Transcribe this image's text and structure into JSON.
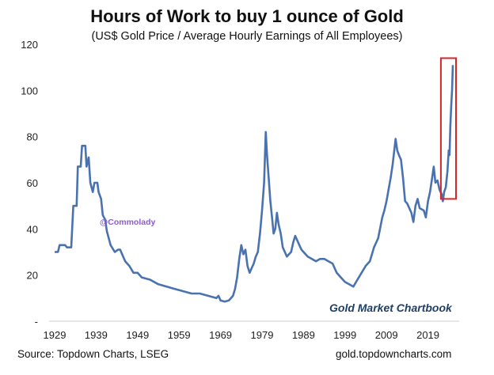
{
  "chart_data": {
    "type": "line",
    "title": "Hours of Work to buy 1 ounce of Gold",
    "subtitle": "(US$ Gold Price / Average Hourly Earnings of All Employees)",
    "xlabel": "",
    "ylabel": "",
    "xlim": [
      1929,
      2025
    ],
    "ylim": [
      0,
      120
    ],
    "x_ticks": [
      "1929",
      "1939",
      "1949",
      "1959",
      "1969",
      "1979",
      "1989",
      "1999",
      "2009",
      "2019"
    ],
    "y_ticks": [
      "-",
      "20",
      "40",
      "60",
      "80",
      "100",
      "120"
    ],
    "grid": false,
    "annotations": [
      "@Commolady",
      "Gold Market Chartbook"
    ],
    "highlight": {
      "x_range": [
        2022.5,
        2025
      ],
      "y_range": [
        53,
        114
      ]
    },
    "line_color": "#4a72b0",
    "highlight_color": "#d62728",
    "annotation_colors": {
      "@Commolady": "#8e5ad6",
      "Gold Market Chartbook": "#1f3f66"
    },
    "series": [
      {
        "name": "",
        "points": [
          [
            1929,
            30
          ],
          [
            1929.8,
            30
          ],
          [
            1930.2,
            33
          ],
          [
            1931.5,
            33
          ],
          [
            1932,
            32
          ],
          [
            1933,
            32
          ],
          [
            1933.5,
            50
          ],
          [
            1934.3,
            50
          ],
          [
            1934.6,
            67
          ],
          [
            1935.3,
            67
          ],
          [
            1935.6,
            76
          ],
          [
            1936.4,
            76
          ],
          [
            1936.7,
            67
          ],
          [
            1937.2,
            71
          ],
          [
            1937.6,
            60
          ],
          [
            1938.2,
            56
          ],
          [
            1938.6,
            60
          ],
          [
            1939.3,
            60
          ],
          [
            1939.6,
            56
          ],
          [
            1940.2,
            53
          ],
          [
            1940.6,
            46
          ],
          [
            1941.2,
            44
          ],
          [
            1941.6,
            39
          ],
          [
            1942.5,
            33
          ],
          [
            1943.5,
            30
          ],
          [
            1944.3,
            31
          ],
          [
            1944.8,
            31
          ],
          [
            1945.5,
            28
          ],
          [
            1946,
            26
          ],
          [
            1947,
            24
          ],
          [
            1948,
            21
          ],
          [
            1949,
            21
          ],
          [
            1950,
            19
          ],
          [
            1952,
            18
          ],
          [
            1954,
            16
          ],
          [
            1956,
            15
          ],
          [
            1958,
            14
          ],
          [
            1960,
            13
          ],
          [
            1962,
            12
          ],
          [
            1964,
            12
          ],
          [
            1966,
            11
          ],
          [
            1968,
            10
          ],
          [
            1968.5,
            11
          ],
          [
            1969,
            9
          ],
          [
            1970,
            8.5
          ],
          [
            1971,
            9
          ],
          [
            1972,
            11
          ],
          [
            1972.5,
            14
          ],
          [
            1973,
            19
          ],
          [
            1973.5,
            27
          ],
          [
            1974,
            33
          ],
          [
            1974.5,
            29
          ],
          [
            1975,
            31
          ],
          [
            1975.5,
            24
          ],
          [
            1976,
            21
          ],
          [
            1976.5,
            23
          ],
          [
            1977,
            25
          ],
          [
            1977.5,
            28
          ],
          [
            1978,
            30
          ],
          [
            1978.5,
            38
          ],
          [
            1979,
            48
          ],
          [
            1979.5,
            60
          ],
          [
            1979.9,
            82
          ],
          [
            1980.2,
            72
          ],
          [
            1980.6,
            62
          ],
          [
            1981,
            52
          ],
          [
            1981.4,
            45
          ],
          [
            1981.8,
            38
          ],
          [
            1982.2,
            40
          ],
          [
            1982.6,
            47
          ],
          [
            1983,
            42
          ],
          [
            1983.5,
            38
          ],
          [
            1984,
            32
          ],
          [
            1984.5,
            30
          ],
          [
            1985,
            28
          ],
          [
            1985.5,
            29
          ],
          [
            1986,
            30
          ],
          [
            1986.5,
            34
          ],
          [
            1987,
            37
          ],
          [
            1987.5,
            35
          ],
          [
            1988,
            33
          ],
          [
            1988.5,
            31
          ],
          [
            1989,
            30
          ],
          [
            1990,
            28
          ],
          [
            1991,
            27
          ],
          [
            1992,
            26
          ],
          [
            1993,
            27
          ],
          [
            1994,
            27
          ],
          [
            1995,
            26
          ],
          [
            1996,
            25
          ],
          [
            1997,
            21
          ],
          [
            1998,
            19
          ],
          [
            1999,
            17
          ],
          [
            2000,
            16
          ],
          [
            2001,
            15
          ],
          [
            2002,
            18
          ],
          [
            2003,
            21
          ],
          [
            2004,
            24
          ],
          [
            2005,
            26
          ],
          [
            2006,
            32
          ],
          [
            2007,
            36
          ],
          [
            2008,
            45
          ],
          [
            2008.5,
            48
          ],
          [
            2009,
            52
          ],
          [
            2010,
            62
          ],
          [
            2010.5,
            68
          ],
          [
            2011.2,
            79
          ],
          [
            2011.6,
            74
          ],
          [
            2012,
            72
          ],
          [
            2012.5,
            70
          ],
          [
            2013,
            62
          ],
          [
            2013.5,
            52
          ],
          [
            2014,
            51
          ],
          [
            2015,
            47
          ],
          [
            2015.5,
            43
          ],
          [
            2016,
            50
          ],
          [
            2016.5,
            53
          ],
          [
            2017,
            49
          ],
          [
            2018,
            48
          ],
          [
            2018.5,
            45
          ],
          [
            2019,
            52
          ],
          [
            2019.5,
            56
          ],
          [
            2020,
            62
          ],
          [
            2020.4,
            67
          ],
          [
            2020.8,
            60
          ],
          [
            2021.3,
            61
          ],
          [
            2021.8,
            57
          ],
          [
            2022.3,
            55
          ],
          [
            2022.6,
            52
          ],
          [
            2022.9,
            56
          ],
          [
            2023.3,
            58
          ],
          [
            2023.7,
            65
          ],
          [
            2024,
            74
          ],
          [
            2024.2,
            72
          ],
          [
            2024.4,
            85
          ],
          [
            2024.6,
            93
          ],
          [
            2024.8,
            100
          ],
          [
            2025,
            111
          ]
        ]
      }
    ]
  }
}
